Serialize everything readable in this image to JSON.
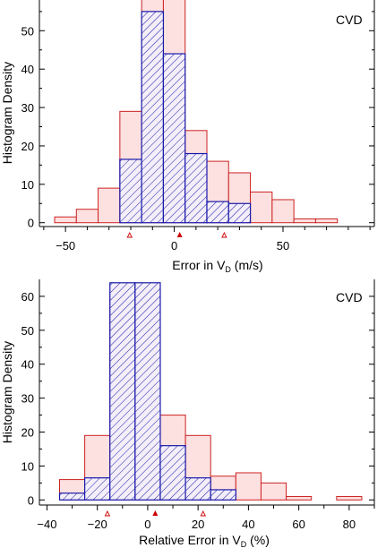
{
  "chart_data": [
    {
      "type": "histogram",
      "panel_label": "CVD",
      "xlabel_main": "Error in V",
      "xlabel_sub": "D",
      "xlabel_suffix": " (m/s)",
      "ylabel": "Histogram Density",
      "xlim": [
        -62,
        92
      ],
      "ylim": [
        -1,
        58
      ],
      "xticks": [
        -50,
        0,
        50
      ],
      "yticks": [
        0,
        10,
        20,
        30,
        40,
        50
      ],
      "colors": {
        "series_a_edge": "#cc2222",
        "series_a_fill": "#fde0e0",
        "series_b_edge": "#1a1aaa",
        "marker": "#cc0000"
      },
      "series": [
        {
          "style": "filled",
          "bins": [
            [
              -55,
              -45,
              1.5
            ],
            [
              -45,
              -35,
              3.5
            ],
            [
              -35,
              -25,
              9
            ],
            [
              -25,
              -15,
              29
            ],
            [
              -15,
              -5,
              64
            ],
            [
              -5,
              5,
              62
            ],
            [
              5,
              15,
              24
            ],
            [
              15,
              25,
              16
            ],
            [
              25,
              35,
              13
            ],
            [
              35,
              45,
              8
            ],
            [
              45,
              55,
              6
            ],
            [
              55,
              65,
              1
            ],
            [
              65,
              75,
              1
            ]
          ]
        },
        {
          "style": "hatched",
          "bins": [
            [
              -25,
              -15,
              16.5
            ],
            [
              -15,
              -5,
              55
            ],
            [
              -5,
              5,
              44
            ],
            [
              5,
              15,
              18
            ],
            [
              15,
              25,
              5.5
            ],
            [
              25,
              35,
              5
            ]
          ]
        }
      ],
      "markers": {
        "filled": [
          2.5
        ],
        "open": [
          -20.5,
          23
        ]
      }
    },
    {
      "type": "histogram",
      "panel_label": "CVD",
      "xlabel_main": "Relative Error in V",
      "xlabel_sub": "D",
      "xlabel_suffix": " (%)",
      "ylabel": "Histogram Density",
      "xlim": [
        -43,
        90
      ],
      "ylim": [
        -1.5,
        65
      ],
      "xticks": [
        -40,
        -20,
        0,
        20,
        40,
        60,
        80
      ],
      "yticks": [
        0,
        10,
        20,
        30,
        40,
        50,
        60
      ],
      "colors": {
        "series_a_edge": "#cc2222",
        "series_a_fill": "#fde0e0",
        "series_b_edge": "#1a1aaa",
        "marker": "#cc0000"
      },
      "series": [
        {
          "style": "filled",
          "bins": [
            [
              -35,
              -25,
              6
            ],
            [
              -25,
              -15,
              19
            ],
            [
              -15,
              -5,
              60
            ],
            [
              -5,
              5,
              61
            ],
            [
              5,
              15,
              25
            ],
            [
              15,
              25,
              19
            ],
            [
              25,
              35,
              7
            ],
            [
              35,
              45,
              8
            ],
            [
              45,
              55,
              5
            ],
            [
              55,
              65,
              1
            ],
            [
              75,
              85,
              1
            ]
          ]
        },
        {
          "style": "hatched",
          "bins": [
            [
              -35,
              -25,
              2
            ],
            [
              -25,
              -15,
              6.5
            ],
            [
              -15,
              -5,
              64
            ],
            [
              -5,
              5,
              64
            ],
            [
              5,
              15,
              16
            ],
            [
              15,
              25,
              6.5
            ],
            [
              25,
              35,
              3
            ]
          ]
        }
      ],
      "markers": {
        "filled": [
          3
        ],
        "open": [
          -16,
          22
        ]
      }
    }
  ]
}
